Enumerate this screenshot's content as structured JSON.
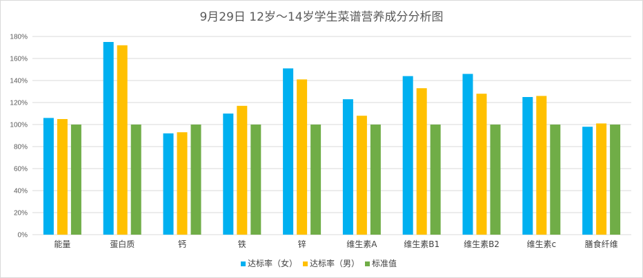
{
  "chart_data": {
    "type": "bar",
    "title": "9月29日 12岁～14岁学生菜谱营养成分分析图",
    "xlabel": "",
    "ylabel": "",
    "categories": [
      "能量",
      "蛋白质",
      "钙",
      "铁",
      "锌",
      "维生素A",
      "维生素B1",
      "维生素B2",
      "维生素c",
      "膳食纤维"
    ],
    "series": [
      {
        "name": "达标率（女）",
        "color": "#00b0f0",
        "values": [
          106,
          175,
          92,
          110,
          151,
          123,
          144,
          146,
          125,
          98
        ]
      },
      {
        "name": "达标率（男）",
        "color": "#ffc000",
        "values": [
          105,
          172,
          93,
          117,
          141,
          108,
          133,
          128,
          126,
          101
        ]
      },
      {
        "name": "标准值",
        "color": "#70ad47",
        "values": [
          100,
          100,
          100,
          100,
          100,
          100,
          100,
          100,
          100,
          100
        ]
      }
    ],
    "ylim": [
      0,
      180
    ],
    "ytick_step": 20,
    "ytick_format": "percent",
    "grid": true,
    "legend_position": "bottom"
  }
}
